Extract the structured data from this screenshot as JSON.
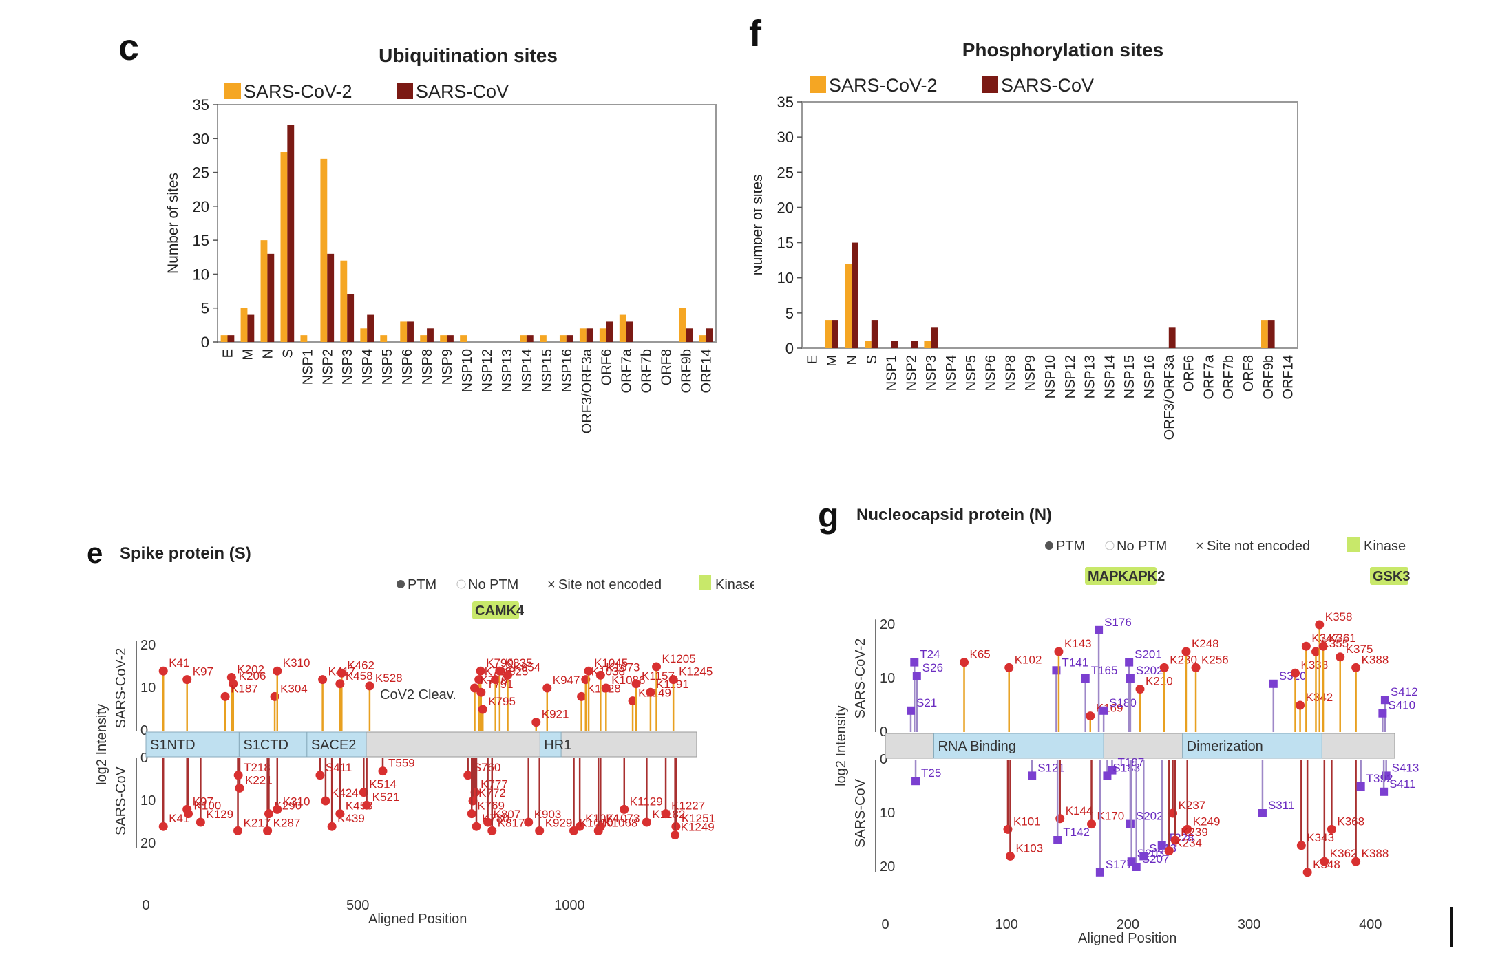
{
  "panels": {
    "c": {
      "letter": "c",
      "chart_data": {
        "type": "bar",
        "title": "Ubiquitination sites",
        "ylabel": "Number of sites",
        "xlabel": "",
        "ylim": [
          0,
          35
        ],
        "yticks": [
          0,
          5,
          10,
          15,
          20,
          25,
          30,
          35
        ],
        "grid": false,
        "legend": "top-left",
        "categories": [
          "E",
          "M",
          "N",
          "S",
          "NSP1",
          "NSP2",
          "NSP3",
          "NSP4",
          "NSP5",
          "NSP6",
          "NSP8",
          "NSP9",
          "NSP10",
          "NSP12",
          "NSP13",
          "NSP14",
          "NSP15",
          "NSP16",
          "ORF3/ORF3a",
          "ORF6",
          "ORF7a",
          "ORF7b",
          "ORF8",
          "ORF9b",
          "ORF14"
        ],
        "series": [
          {
            "name": "SARS-CoV-2",
            "color": "#F5A623",
            "values": [
              1,
              5,
              15,
              28,
              1,
              27,
              12,
              2,
              1,
              3,
              1,
              1,
              1,
              0,
              0,
              1,
              1,
              1,
              2,
              2,
              4,
              0,
              0,
              5,
              1
            ]
          },
          {
            "name": "SARS-CoV",
            "color": "#7B1A14",
            "values": [
              1,
              4,
              13,
              32,
              0,
              13,
              7,
              4,
              0,
              3,
              2,
              1,
              0,
              0,
              0,
              1,
              0,
              1,
              2,
              3,
              3,
              0,
              0,
              2,
              2
            ]
          }
        ]
      }
    },
    "f": {
      "letter": "f",
      "chart_data": {
        "type": "bar",
        "title": "Phosphorylation sites",
        "ylabel": "Number of sites",
        "xlabel": "",
        "ylim": [
          0,
          35
        ],
        "yticks": [
          0,
          5,
          10,
          15,
          20,
          25,
          30,
          35
        ],
        "grid": false,
        "legend": "top-left",
        "categories": [
          "E",
          "M",
          "N",
          "S",
          "NSP1",
          "NSP2",
          "NSP3",
          "NSP4",
          "NSP5",
          "NSP6",
          "NSP8",
          "NSP9",
          "NSP10",
          "NSP12",
          "NSP13",
          "NSP14",
          "NSP15",
          "NSP16",
          "ORF3/ORF3a",
          "ORF6",
          "ORF7a",
          "ORF7b",
          "ORF8",
          "ORF9b",
          "ORF14"
        ],
        "series": [
          {
            "name": "SARS-CoV-2",
            "color": "#F5A623",
            "values": [
              0,
              4,
              12,
              1,
              0,
              0,
              1,
              0,
              0,
              0,
              0,
              0,
              0,
              0,
              0,
              0,
              0,
              0,
              0,
              0,
              0,
              0,
              0,
              4,
              0
            ]
          },
          {
            "name": "SARS-CoV",
            "color": "#7B1A14",
            "values": [
              0,
              4,
              15,
              4,
              1,
              1,
              3,
              0,
              0,
              0,
              0,
              0,
              0,
              0,
              0,
              0,
              0,
              0,
              3,
              0,
              0,
              0,
              0,
              4,
              0
            ]
          }
        ]
      }
    },
    "e": {
      "letter": "e",
      "title": "Spike protein (S)",
      "legend": {
        "ptm": "PTM",
        "noptm": "No PTM",
        "notenc": "Site not encoded",
        "kinase": "Kinase"
      },
      "kinase": "CAMK4",
      "xlabel": "Aligned Position",
      "ylabel_top": "SARS-CoV-2",
      "ylabel_bottom": "SARS-CoV",
      "ylabel_mid": "log2 Intensity",
      "xticks": [
        "0",
        "500",
        "1000"
      ],
      "yticks_top": [
        "20",
        "10",
        "0"
      ],
      "yticks_bottom": [
        "0",
        "10",
        "20"
      ],
      "domains": [
        "S1NTD",
        "S1CTD",
        "SACE2",
        "HR1",
        ""
      ],
      "annotation": "CoV2 Cleav.",
      "chart_data": {
        "type": "scatter",
        "xlim": [
          0,
          1300
        ],
        "ylim": [
          0,
          20
        ],
        "top": [
          {
            "label": "K41",
            "x": 41,
            "y": 14
          },
          {
            "label": "K97",
            "x": 97,
            "y": 12
          },
          {
            "label": "K202",
            "x": 202,
            "y": 12.5
          },
          {
            "label": "K206",
            "x": 206,
            "y": 11
          },
          {
            "label": "K187",
            "x": 187,
            "y": 8
          },
          {
            "label": "K304",
            "x": 304,
            "y": 8
          },
          {
            "label": "K310",
            "x": 310,
            "y": 14
          },
          {
            "label": "K417",
            "x": 417,
            "y": 12
          },
          {
            "label": "K462",
            "x": 462,
            "y": 13.5
          },
          {
            "label": "K458",
            "x": 458,
            "y": 11
          },
          {
            "label": "K528",
            "x": 528,
            "y": 10.5
          },
          {
            "label": "K790",
            "x": 790,
            "y": 14
          },
          {
            "label": "K786",
            "x": 786,
            "y": 12
          },
          {
            "label": "K776",
            "x": 776,
            "y": 10
          },
          {
            "label": "T791",
            "x": 791,
            "y": 9
          },
          {
            "label": "K825",
            "x": 825,
            "y": 12
          },
          {
            "label": "K835",
            "x": 835,
            "y": 14
          },
          {
            "label": "K854",
            "x": 854,
            "y": 13
          },
          {
            "label": "K947",
            "x": 947,
            "y": 10
          },
          {
            "label": "K921",
            "x": 921,
            "y": 2
          },
          {
            "label": "K795",
            "x": 795,
            "y": 5
          },
          {
            "label": "K1028",
            "x": 1028,
            "y": 8
          },
          {
            "label": "K1038",
            "x": 1038,
            "y": 12
          },
          {
            "label": "K1045",
            "x": 1045,
            "y": 14
          },
          {
            "label": "K1073",
            "x": 1073,
            "y": 13
          },
          {
            "label": "K1086",
            "x": 1086,
            "y": 10
          },
          {
            "label": "K1149",
            "x": 1149,
            "y": 7
          },
          {
            "label": "K1191",
            "x": 1191,
            "y": 9
          },
          {
            "label": "K1205",
            "x": 1205,
            "y": 15
          },
          {
            "label": "K1245",
            "x": 1245,
            "y": 12
          },
          {
            "label": "K1157",
            "x": 1157,
            "y": 11
          }
        ],
        "bottom": [
          {
            "label": "K41",
            "x": 41,
            "y": 16
          },
          {
            "label": "K129",
            "x": 129,
            "y": 15
          },
          {
            "label": "K100",
            "x": 100,
            "y": 13
          },
          {
            "label": "K97",
            "x": 97,
            "y": 12
          },
          {
            "label": "K217",
            "x": 217,
            "y": 17
          },
          {
            "label": "K221",
            "x": 221,
            "y": 7
          },
          {
            "label": "T218",
            "x": 218,
            "y": 4
          },
          {
            "label": "K287",
            "x": 287,
            "y": 17
          },
          {
            "label": "K290",
            "x": 290,
            "y": 13
          },
          {
            "label": "K310",
            "x": 310,
            "y": 12
          },
          {
            "label": "K439",
            "x": 439,
            "y": 16
          },
          {
            "label": "K424",
            "x": 424,
            "y": 10
          },
          {
            "label": "S411",
            "x": 411,
            "y": 4
          },
          {
            "label": "K458",
            "x": 458,
            "y": 13
          },
          {
            "label": "K514",
            "x": 514,
            "y": 8
          },
          {
            "label": "K521",
            "x": 521,
            "y": 11
          },
          {
            "label": "T559",
            "x": 559,
            "y": 3
          },
          {
            "label": "S760",
            "x": 760,
            "y": 4
          },
          {
            "label": "K777",
            "x": 777,
            "y": 8
          },
          {
            "label": "K772",
            "x": 772,
            "y": 10
          },
          {
            "label": "K769",
            "x": 769,
            "y": 13
          },
          {
            "label": "K780",
            "x": 780,
            "y": 16
          },
          {
            "label": "K807",
            "x": 807,
            "y": 15
          },
          {
            "label": "K817",
            "x": 817,
            "y": 17
          },
          {
            "label": "K903",
            "x": 903,
            "y": 15
          },
          {
            "label": "K929",
            "x": 929,
            "y": 17
          },
          {
            "label": "K1024",
            "x": 1024,
            "y": 16
          },
          {
            "label": "K1010",
            "x": 1010,
            "y": 17
          },
          {
            "label": "K1073",
            "x": 1073,
            "y": 16
          },
          {
            "label": "K1068",
            "x": 1068,
            "y": 17
          },
          {
            "label": "K1182",
            "x": 1182,
            "y": 15
          },
          {
            "label": "K1227",
            "x": 1227,
            "y": 13
          },
          {
            "label": "K1251",
            "x": 1251,
            "y": 16
          },
          {
            "label": "K1249",
            "x": 1249,
            "y": 18
          },
          {
            "label": "K1129",
            "x": 1129,
            "y": 12
          }
        ]
      }
    },
    "g": {
      "letter": "g",
      "title": "Nucleocapsid protein (N)",
      "legend": {
        "ptm": "PTM",
        "noptm": "No PTM",
        "notenc": "Site not encoded",
        "kinase": "Kinase"
      },
      "kinases": [
        "MAPKAPK2",
        "GSK3"
      ],
      "xlabel": "Aligned Position",
      "ylabel_top": "SARS-CoV-2",
      "ylabel_bottom": "SARS-CoV",
      "ylabel_mid": "log2 Intensity",
      "xticks": [
        "0",
        "100",
        "200",
        "300",
        "400"
      ],
      "yticks_top": [
        "20",
        "10",
        "0"
      ],
      "yticks_bottom": [
        "0",
        "10",
        "20"
      ],
      "domains": [
        "RNA Binding",
        "Dimerization"
      ],
      "chart_data": {
        "type": "scatter",
        "xlim": [
          0,
          420
        ],
        "ylim": [
          0,
          20
        ],
        "top": [
          {
            "label": "T24",
            "x": 24,
            "y": 13,
            "kind": "P"
          },
          {
            "label": "S26",
            "x": 26,
            "y": 10.5,
            "kind": "P"
          },
          {
            "label": "S21",
            "x": 21,
            "y": 4,
            "kind": "P"
          },
          {
            "label": "K65",
            "x": 65,
            "y": 13,
            "kind": "Ub"
          },
          {
            "label": "K102",
            "x": 102,
            "y": 12,
            "kind": "Ub"
          },
          {
            "label": "T141",
            "x": 141,
            "y": 11.5,
            "kind": "P"
          },
          {
            "label": "K143",
            "x": 143,
            "y": 15,
            "kind": "Ub"
          },
          {
            "label": "T165",
            "x": 165,
            "y": 10,
            "kind": "P"
          },
          {
            "label": "S176",
            "x": 176,
            "y": 19,
            "kind": "P"
          },
          {
            "label": "K169",
            "x": 169,
            "y": 3,
            "kind": "Ub"
          },
          {
            "label": "S180",
            "x": 180,
            "y": 4,
            "kind": "P"
          },
          {
            "label": "S201",
            "x": 201,
            "y": 13,
            "kind": "P"
          },
          {
            "label": "S202",
            "x": 202,
            "y": 10,
            "kind": "P"
          },
          {
            "label": "K210",
            "x": 210,
            "y": 8,
            "kind": "Ub"
          },
          {
            "label": "K230",
            "x": 230,
            "y": 12,
            "kind": "Ub"
          },
          {
            "label": "K248",
            "x": 248,
            "y": 15,
            "kind": "Ub"
          },
          {
            "label": "K256",
            "x": 256,
            "y": 12,
            "kind": "Ub"
          },
          {
            "label": "S320",
            "x": 320,
            "y": 9,
            "kind": "P"
          },
          {
            "label": "K342",
            "x": 342,
            "y": 5,
            "kind": "Ub"
          },
          {
            "label": "K338",
            "x": 338,
            "y": 11,
            "kind": "Ub"
          },
          {
            "label": "K347",
            "x": 347,
            "y": 16,
            "kind": "Ub"
          },
          {
            "label": "K355",
            "x": 355,
            "y": 15,
            "kind": "Ub"
          },
          {
            "label": "K358",
            "x": 358,
            "y": 20,
            "kind": "Ub"
          },
          {
            "label": "K361",
            "x": 361,
            "y": 16,
            "kind": "Ub"
          },
          {
            "label": "K375",
            "x": 375,
            "y": 14,
            "kind": "Ub"
          },
          {
            "label": "K388",
            "x": 388,
            "y": 12,
            "kind": "Ub"
          },
          {
            "label": "S412",
            "x": 412,
            "y": 6,
            "kind": "P"
          },
          {
            "label": "S410",
            "x": 410,
            "y": 3.5,
            "kind": "P"
          }
        ],
        "bottom": [
          {
            "label": "T25",
            "x": 25,
            "y": 4,
            "kind": "P"
          },
          {
            "label": "K101",
            "x": 101,
            "y": 13,
            "kind": "Ub"
          },
          {
            "label": "K103",
            "x": 103,
            "y": 18,
            "kind": "Ub"
          },
          {
            "label": "S121",
            "x": 121,
            "y": 3,
            "kind": "P"
          },
          {
            "label": "K144",
            "x": 144,
            "y": 11,
            "kind": "Ub"
          },
          {
            "label": "T142",
            "x": 142,
            "y": 15,
            "kind": "P"
          },
          {
            "label": "T187",
            "x": 187,
            "y": 2,
            "kind": "P"
          },
          {
            "label": "S183",
            "x": 183,
            "y": 3,
            "kind": "P"
          },
          {
            "label": "K170",
            "x": 170,
            "y": 12,
            "kind": "Ub"
          },
          {
            "label": "S177",
            "x": 177,
            "y": 21,
            "kind": "P"
          },
          {
            "label": "S202",
            "x": 202,
            "y": 12,
            "kind": "P"
          },
          {
            "label": "S203",
            "x": 203,
            "y": 19,
            "kind": "P"
          },
          {
            "label": "S207",
            "x": 207,
            "y": 20,
            "kind": "P"
          },
          {
            "label": "S213",
            "x": 213,
            "y": 18,
            "kind": "P"
          },
          {
            "label": "T228",
            "x": 228,
            "y": 16,
            "kind": "P"
          },
          {
            "label": "K237",
            "x": 237,
            "y": 10,
            "kind": "Ub"
          },
          {
            "label": "K249",
            "x": 249,
            "y": 13,
            "kind": "Ub"
          },
          {
            "label": "K239",
            "x": 239,
            "y": 15,
            "kind": "Ub"
          },
          {
            "label": "K234",
            "x": 234,
            "y": 17,
            "kind": "Ub"
          },
          {
            "label": "S311",
            "x": 311,
            "y": 10,
            "kind": "P"
          },
          {
            "label": "K343",
            "x": 343,
            "y": 16,
            "kind": "Ub"
          },
          {
            "label": "K348",
            "x": 348,
            "y": 21,
            "kind": "Ub"
          },
          {
            "label": "K362",
            "x": 362,
            "y": 19,
            "kind": "Ub"
          },
          {
            "label": "K368",
            "x": 368,
            "y": 13,
            "kind": "Ub"
          },
          {
            "label": "K388",
            "x": 388,
            "y": 19,
            "kind": "Ub"
          },
          {
            "label": "S413",
            "x": 413,
            "y": 3,
            "kind": "P"
          },
          {
            "label": "T392",
            "x": 392,
            "y": 5,
            "kind": "P"
          },
          {
            "label": "S411",
            "x": 411,
            "y": 6,
            "kind": "P"
          }
        ]
      }
    }
  }
}
